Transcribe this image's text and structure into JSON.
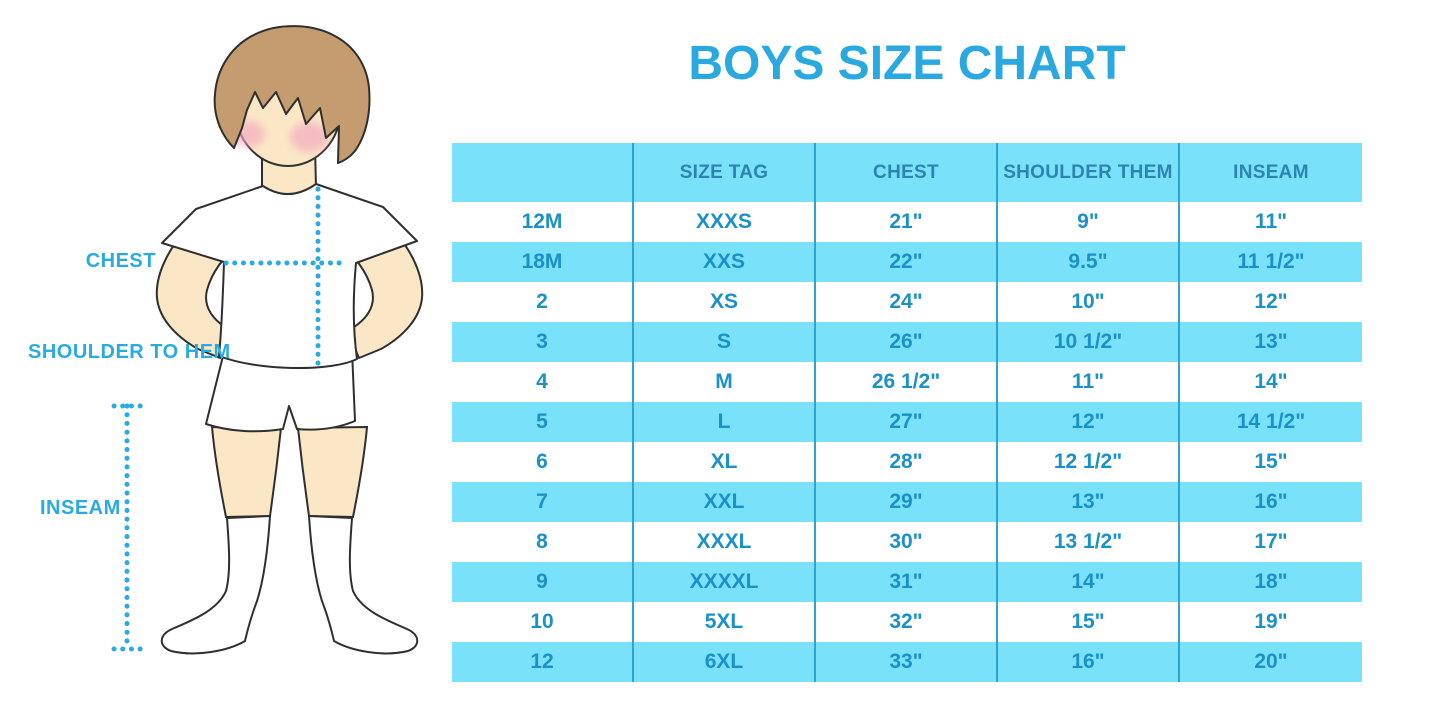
{
  "title": "BOYS SIZE CHART",
  "figure": {
    "description": "outline illustration of a boy in white t-shirt, shorts and knee socks with dotted measurement guides",
    "labels": {
      "chest": "CHEST",
      "shoulder_to_hem": "SHOULDER TO HEM",
      "inseam": "INSEAM"
    }
  },
  "colors": {
    "accent_blue": "#29ABE2",
    "table_stripe": "#79E2FA",
    "table_divider": "#2FA3CF",
    "header_text": "#2B84B2",
    "cell_text": "#1C90C8",
    "skin": "#FBE7C6",
    "hair": "#C49C6F",
    "cheek": "#F2A7BC"
  },
  "chart_data": {
    "type": "table",
    "title": "BOYS SIZE CHART",
    "columns": [
      "",
      "SIZE TAG",
      "CHEST",
      "SHOULDER THEM",
      "INSEAM"
    ],
    "rows": [
      [
        "12M",
        "XXXS",
        "21\"",
        "9\"",
        "11\""
      ],
      [
        "18M",
        "XXS",
        "22\"",
        "9.5\"",
        "11 1/2\""
      ],
      [
        "2",
        "XS",
        "24\"",
        "10\"",
        "12\""
      ],
      [
        "3",
        "S",
        "26\"",
        "10 1/2\"",
        "13\""
      ],
      [
        "4",
        "M",
        "26 1/2\"",
        "11\"",
        "14\""
      ],
      [
        "5",
        "L",
        "27\"",
        "12\"",
        "14 1/2\""
      ],
      [
        "6",
        "XL",
        "28\"",
        "12 1/2\"",
        "15\""
      ],
      [
        "7",
        "XXL",
        "29\"",
        "13\"",
        "16\""
      ],
      [
        "8",
        "XXXL",
        "30\"",
        "13 1/2\"",
        "17\""
      ],
      [
        "9",
        "XXXXL",
        "31\"",
        "14\"",
        "18\""
      ],
      [
        "10",
        "5XL",
        "32\"",
        "15\"",
        "19\""
      ],
      [
        "12",
        "6XL",
        "33\"",
        "16\"",
        "20\""
      ]
    ],
    "layout": {
      "stripe_pattern": "alternating white / light-cyan rows, cyan header",
      "grid": "vertical dividers only"
    }
  }
}
